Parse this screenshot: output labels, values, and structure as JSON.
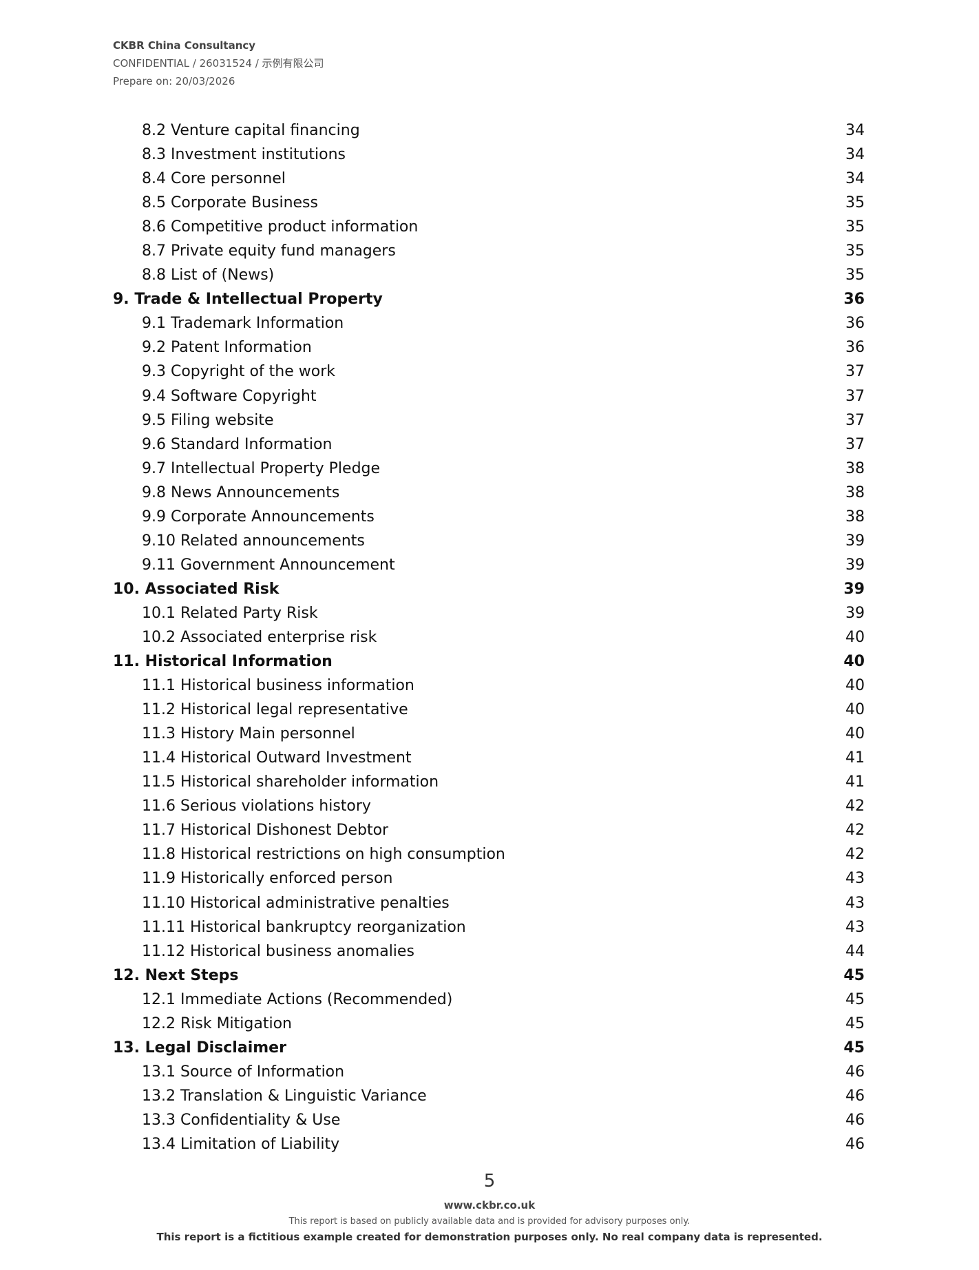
{
  "header": {
    "company": "CKBR China Consultancy",
    "ref": "CONFIDENTIAL / 26031524 / 示例有限公司",
    "prepared": "Prepare on: 20/03/2026"
  },
  "toc": [
    {
      "title": "8.2 Venture capital financing",
      "page": "34",
      "level": 2
    },
    {
      "title": "8.3 Investment institutions",
      "page": "34",
      "level": 2
    },
    {
      "title": "8.4 Core personnel",
      "page": "34",
      "level": 2
    },
    {
      "title": "8.5 Corporate Business",
      "page": "35",
      "level": 2
    },
    {
      "title": "8.6 Competitive product information",
      "page": "35",
      "level": 2
    },
    {
      "title": "8.7 Private equity fund managers",
      "page": "35",
      "level": 2
    },
    {
      "title": "8.8 List of (News)",
      "page": "35",
      "level": 2
    },
    {
      "title": "9. Trade & Intellectual Property",
      "page": "36",
      "level": 1
    },
    {
      "title": "9.1 Trademark Information",
      "page": "36",
      "level": 2
    },
    {
      "title": "9.2 Patent Information",
      "page": "36",
      "level": 2
    },
    {
      "title": "9.3 Copyright of the work",
      "page": "37",
      "level": 2
    },
    {
      "title": "9.4 Software Copyright",
      "page": "37",
      "level": 2
    },
    {
      "title": "9.5 Filing website",
      "page": "37",
      "level": 2
    },
    {
      "title": "9.6 Standard Information",
      "page": "37",
      "level": 2
    },
    {
      "title": "9.7 Intellectual Property Pledge",
      "page": "38",
      "level": 2
    },
    {
      "title": "9.8 News Announcements",
      "page": "38",
      "level": 2
    },
    {
      "title": "9.9 Corporate Announcements",
      "page": "38",
      "level": 2
    },
    {
      "title": "9.10 Related announcements",
      "page": "39",
      "level": 2
    },
    {
      "title": "9.11 Government Announcement",
      "page": "39",
      "level": 2
    },
    {
      "title": "10. Associated Risk",
      "page": "39",
      "level": 1
    },
    {
      "title": "10.1 Related Party Risk",
      "page": "39",
      "level": 2
    },
    {
      "title": "10.2 Associated enterprise risk",
      "page": "40",
      "level": 2
    },
    {
      "title": "11. Historical Information",
      "page": "40",
      "level": 1
    },
    {
      "title": "11.1 Historical business information",
      "page": "40",
      "level": 2
    },
    {
      "title": "11.2 Historical legal representative",
      "page": "40",
      "level": 2
    },
    {
      "title": "11.3 History Main personnel",
      "page": "40",
      "level": 2
    },
    {
      "title": "11.4 Historical Outward Investment",
      "page": "41",
      "level": 2
    },
    {
      "title": "11.5 Historical shareholder information",
      "page": "41",
      "level": 2
    },
    {
      "title": "11.6 Serious violations history",
      "page": "42",
      "level": 2
    },
    {
      "title": "11.7 Historical Dishonest Debtor",
      "page": "42",
      "level": 2
    },
    {
      "title": "11.8 Historical restrictions on high consumption",
      "page": "42",
      "level": 2
    },
    {
      "title": "11.9 Historically enforced person",
      "page": "43",
      "level": 2
    },
    {
      "title": "11.10 Historical administrative penalties",
      "page": "43",
      "level": 2
    },
    {
      "title": "11.11 Historical bankruptcy reorganization",
      "page": "43",
      "level": 2
    },
    {
      "title": "11.12 Historical business anomalies",
      "page": "44",
      "level": 2
    },
    {
      "title": "12. Next Steps",
      "page": "45",
      "level": 1
    },
    {
      "title": "12.1 Immediate Actions (Recommended)",
      "page": "45",
      "level": 2
    },
    {
      "title": "12.2 Risk Mitigation",
      "page": "45",
      "level": 2
    },
    {
      "title": "13. Legal Disclaimer",
      "page": "45",
      "level": 1
    },
    {
      "title": "13.1 Source of Information",
      "page": "46",
      "level": 2
    },
    {
      "title": "13.2 Translation & Linguistic Variance",
      "page": "46",
      "level": 2
    },
    {
      "title": "13.3 Confidentiality & Use",
      "page": "46",
      "level": 2
    },
    {
      "title": "13.4 Limitation of Liability",
      "page": "46",
      "level": 2
    }
  ],
  "footer": {
    "page_number": "5",
    "website": "www.ckbr.co.uk",
    "note": "This report is based on publicly available data and is provided for advisory purposes only.",
    "disclaimer": "This report is a fictitious example created for demonstration purposes only. No real company data is represented."
  }
}
